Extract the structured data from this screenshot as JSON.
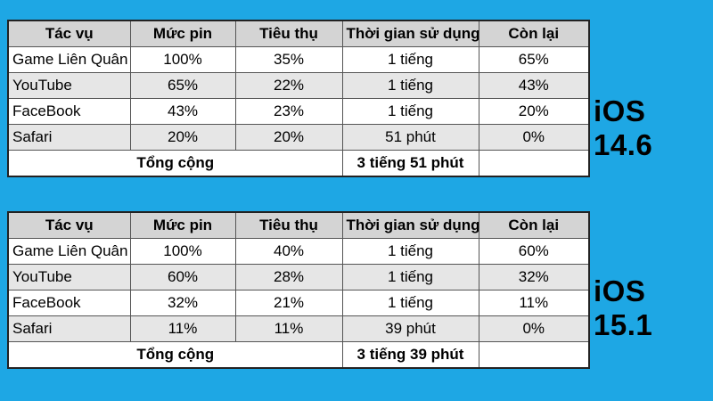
{
  "headers": [
    "Tác vụ",
    "Mức pin",
    "Tiêu thụ",
    "Thời gian sử dụng",
    "Còn lại"
  ],
  "tables": [
    {
      "os_label": "iOS 14.6",
      "rows": [
        {
          "task": "Game Liên Quân",
          "battery": "100%",
          "consumed": "35%",
          "time": "1 tiếng",
          "remaining": "65%"
        },
        {
          "task": "YouTube",
          "battery": "65%",
          "consumed": "22%",
          "time": "1 tiếng",
          "remaining": "43%"
        },
        {
          "task": "FaceBook",
          "battery": "43%",
          "consumed": "23%",
          "time": "1 tiếng",
          "remaining": "20%"
        },
        {
          "task": "Safari",
          "battery": "20%",
          "consumed": "20%",
          "time": "51 phút",
          "remaining": "0%"
        }
      ],
      "total": {
        "label": "Tổng cộng",
        "time": "3 tiếng 51 phút"
      }
    },
    {
      "os_label": "iOS 15.1",
      "rows": [
        {
          "task": "Game Liên Quân",
          "battery": "100%",
          "consumed": "40%",
          "time": "1 tiếng",
          "remaining": "60%"
        },
        {
          "task": "YouTube",
          "battery": "60%",
          "consumed": "28%",
          "time": "1 tiếng",
          "remaining": "32%"
        },
        {
          "task": "FaceBook",
          "battery": "32%",
          "consumed": "21%",
          "time": "1 tiếng",
          "remaining": "11%"
        },
        {
          "task": "Safari",
          "battery": "11%",
          "consumed": "11%",
          "time": "39 phút",
          "remaining": "0%"
        }
      ],
      "total": {
        "label": "Tổng cộng",
        "time": "3 tiếng 39 phút"
      }
    }
  ]
}
